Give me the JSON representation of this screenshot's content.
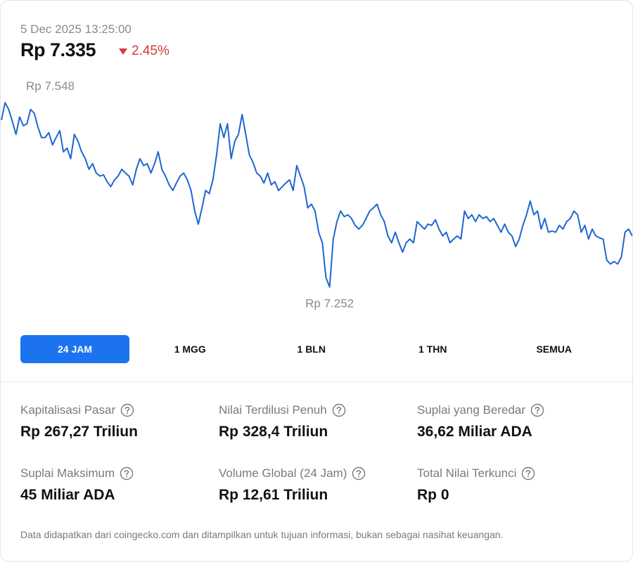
{
  "header": {
    "timestamp": "5 Dec 2025 13:25:00",
    "price": "Rp 7.335",
    "change": "2.45%"
  },
  "chart_data": {
    "type": "line",
    "color": "#1f66d1",
    "ylim": [
      7238,
      7565
    ],
    "annotations": [
      {
        "value": 7548,
        "label": "Rp 7.548"
      },
      {
        "value": 7252,
        "label": "Rp 7.252"
      }
    ],
    "values": [
      7520,
      7548,
      7537,
      7518,
      7497,
      7525,
      7511,
      7514,
      7537,
      7531,
      7509,
      7492,
      7492,
      7500,
      7480,
      7492,
      7503,
      7469,
      7475,
      7458,
      7497,
      7486,
      7469,
      7458,
      7441,
      7450,
      7435,
      7430,
      7432,
      7421,
      7413,
      7424,
      7430,
      7441,
      7435,
      7430,
      7416,
      7441,
      7458,
      7447,
      7450,
      7435,
      7450,
      7469,
      7441,
      7430,
      7416,
      7407,
      7419,
      7430,
      7435,
      7424,
      7407,
      7374,
      7353,
      7379,
      7407,
      7402,
      7424,
      7464,
      7514,
      7492,
      7514,
      7458,
      7486,
      7497,
      7529,
      7497,
      7464,
      7452,
      7435,
      7430,
      7419,
      7435,
      7416,
      7421,
      7407,
      7413,
      7419,
      7424,
      7407,
      7447,
      7430,
      7413,
      7379,
      7385,
      7374,
      7340,
      7323,
      7267,
      7252,
      7329,
      7357,
      7374,
      7365,
      7368,
      7362,
      7351,
      7345,
      7351,
      7362,
      7374,
      7379,
      7385,
      7368,
      7357,
      7334,
      7323,
      7340,
      7323,
      7308,
      7323,
      7329,
      7323,
      7357,
      7351,
      7345,
      7353,
      7351,
      7360,
      7345,
      7334,
      7340,
      7323,
      7329,
      7334,
      7329,
      7374,
      7362,
      7368,
      7357,
      7368,
      7362,
      7365,
      7357,
      7362,
      7351,
      7340,
      7353,
      7340,
      7334,
      7317,
      7329,
      7351,
      7368,
      7390,
      7368,
      7374,
      7345,
      7362,
      7340,
      7342,
      7340,
      7351,
      7345,
      7357,
      7362,
      7374,
      7368,
      7340,
      7351,
      7329,
      7345,
      7334,
      7331,
      7329,
      7295,
      7289,
      7293,
      7289,
      7300,
      7340,
      7345,
      7334
    ]
  },
  "tabs": [
    {
      "label": "24 JAM",
      "active": true
    },
    {
      "label": "1 MGG",
      "active": false
    },
    {
      "label": "1 BLN",
      "active": false
    },
    {
      "label": "1 THN",
      "active": false
    },
    {
      "label": "SEMUA",
      "active": false
    }
  ],
  "stats": [
    {
      "label": "Kapitalisasi Pasar",
      "value": "Rp 267,27 Triliun"
    },
    {
      "label": "Nilai Terdilusi Penuh",
      "value": "Rp 328,4 Triliun"
    },
    {
      "label": "Suplai yang Beredar",
      "value": "36,62 Miliar ADA"
    },
    {
      "label": "Suplai Maksimum",
      "value": "45 Miliar ADA"
    },
    {
      "label": "Volume Global (24 Jam)",
      "value": "Rp 12,61 Triliun"
    },
    {
      "label": "Total Nilai Terkunci",
      "value": "Rp 0"
    }
  ],
  "footer": "Data didapatkan dari coingecko.com dan ditampilkan untuk tujuan informasi, bukan sebagai nasihat keuangan."
}
